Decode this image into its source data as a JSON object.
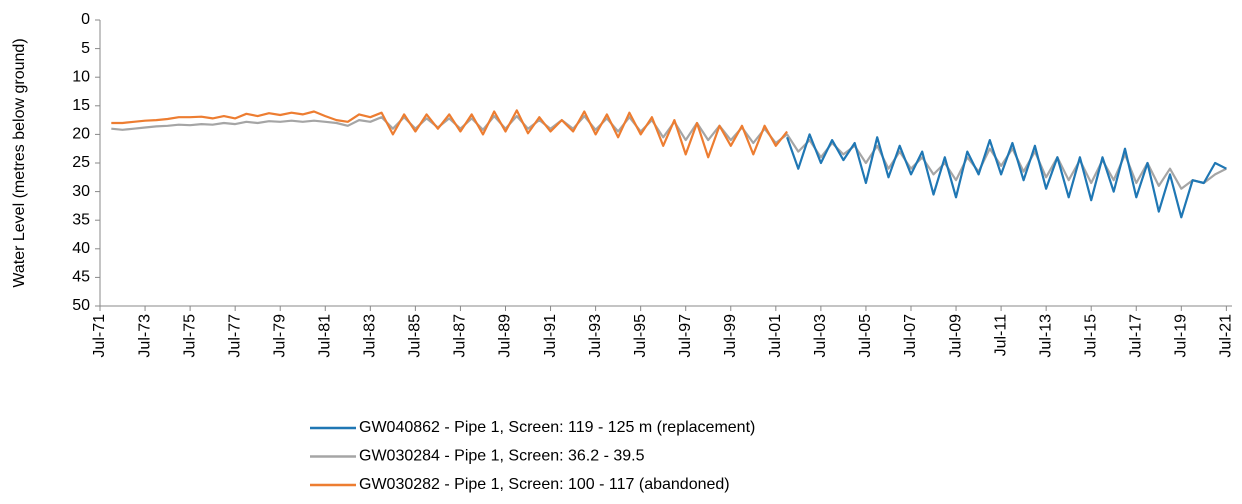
{
  "chart_data": {
    "type": "line",
    "ylabel": "Water Level (metres below ground)",
    "ylim": [
      0,
      50
    ],
    "yticks": [
      0,
      5,
      10,
      15,
      20,
      25,
      30,
      35,
      40,
      45,
      50
    ],
    "yinverted": true,
    "xlim": [
      "1971-07",
      "2021-10"
    ],
    "xticks": [
      {
        "value": "1971-07",
        "label": "Jul-71"
      },
      {
        "value": "1973-07",
        "label": "Jul-73"
      },
      {
        "value": "1975-07",
        "label": "Jul-75"
      },
      {
        "value": "1977-07",
        "label": "Jul-77"
      },
      {
        "value": "1979-07",
        "label": "Jul-79"
      },
      {
        "value": "1981-07",
        "label": "Jul-81"
      },
      {
        "value": "1983-07",
        "label": "Jul-83"
      },
      {
        "value": "1985-07",
        "label": "Jul-85"
      },
      {
        "value": "1987-07",
        "label": "Jul-87"
      },
      {
        "value": "1989-07",
        "label": "Jul-89"
      },
      {
        "value": "1991-07",
        "label": "Jul-91"
      },
      {
        "value": "1993-07",
        "label": "Jul-93"
      },
      {
        "value": "1995-07",
        "label": "Jul-95"
      },
      {
        "value": "1997-07",
        "label": "Jul-97"
      },
      {
        "value": "1999-07",
        "label": "Jul-99"
      },
      {
        "value": "2001-07",
        "label": "Jul-01"
      },
      {
        "value": "2003-07",
        "label": "Jul-03"
      },
      {
        "value": "2005-07",
        "label": "Jul-05"
      },
      {
        "value": "2007-07",
        "label": "Jul-07"
      },
      {
        "value": "2009-07",
        "label": "Jul-09"
      },
      {
        "value": "2011-07",
        "label": "Jul-11"
      },
      {
        "value": "2013-07",
        "label": "Jul-13"
      },
      {
        "value": "2015-07",
        "label": "Jul-15"
      },
      {
        "value": "2017-07",
        "label": "Jul-17"
      },
      {
        "value": "2019-07",
        "label": "Jul-19"
      },
      {
        "value": "2021-07",
        "label": "Jul-21"
      }
    ],
    "legend": "bottom",
    "series": [
      {
        "name": "GW040862 - Pipe 1, Screen: 119 - 125 m (replacement)",
        "color": "#1f77b4",
        "x": [
          "2002-01",
          "2002-07",
          "2003-01",
          "2003-07",
          "2004-01",
          "2004-07",
          "2005-01",
          "2005-07",
          "2006-01",
          "2006-07",
          "2007-01",
          "2007-07",
          "2008-01",
          "2008-07",
          "2009-01",
          "2009-07",
          "2010-01",
          "2010-07",
          "2011-01",
          "2011-07",
          "2012-01",
          "2012-07",
          "2013-01",
          "2013-07",
          "2014-01",
          "2014-07",
          "2015-01",
          "2015-07",
          "2016-01",
          "2016-07",
          "2017-01",
          "2017-07",
          "2018-01",
          "2018-07",
          "2019-01",
          "2019-07",
          "2020-01",
          "2020-07",
          "2021-01",
          "2021-07"
        ],
        "values": [
          20.5,
          26.0,
          20.0,
          25.0,
          21.0,
          24.5,
          21.5,
          28.5,
          20.5,
          27.5,
          22.0,
          27.0,
          23.0,
          30.5,
          24.0,
          31.0,
          23.0,
          27.0,
          21.0,
          27.0,
          21.5,
          28.0,
          22.0,
          29.5,
          24.0,
          31.0,
          24.0,
          31.5,
          24.0,
          30.0,
          22.5,
          31.0,
          25.0,
          33.5,
          27.0,
          34.5,
          28.0,
          28.5,
          25.0,
          26.0
        ]
      },
      {
        "name": "GW030284 - Pipe 1, Screen: 36.2 - 39.5",
        "color": "#a5a5a5",
        "x": [
          "1972-01",
          "1972-07",
          "1973-01",
          "1973-07",
          "1974-01",
          "1974-07",
          "1975-01",
          "1975-07",
          "1976-01",
          "1976-07",
          "1977-01",
          "1977-07",
          "1978-01",
          "1978-07",
          "1979-01",
          "1979-07",
          "1980-01",
          "1980-07",
          "1981-01",
          "1981-07",
          "1982-01",
          "1982-07",
          "1983-01",
          "1983-07",
          "1984-01",
          "1984-07",
          "1985-01",
          "1985-07",
          "1986-01",
          "1986-07",
          "1987-01",
          "1987-07",
          "1988-01",
          "1988-07",
          "1989-01",
          "1989-07",
          "1990-01",
          "1990-07",
          "1991-01",
          "1991-07",
          "1992-01",
          "1992-07",
          "1993-01",
          "1993-07",
          "1994-01",
          "1994-07",
          "1995-01",
          "1995-07",
          "1996-01",
          "1996-07",
          "1997-01",
          "1997-07",
          "1998-01",
          "1998-07",
          "1999-01",
          "1999-07",
          "2000-01",
          "2000-07",
          "2001-01",
          "2001-07",
          "2002-01",
          "2002-07",
          "2003-01",
          "2003-07",
          "2004-01",
          "2004-07",
          "2005-01",
          "2005-07",
          "2006-01",
          "2006-07",
          "2007-01",
          "2007-07",
          "2008-01",
          "2008-07",
          "2009-01",
          "2009-07",
          "2010-01",
          "2010-07",
          "2011-01",
          "2011-07",
          "2012-01",
          "2012-07",
          "2013-01",
          "2013-07",
          "2014-01",
          "2014-07",
          "2015-01",
          "2015-07",
          "2016-01",
          "2016-07",
          "2017-01",
          "2017-07",
          "2018-01",
          "2018-07",
          "2019-01",
          "2019-07",
          "2020-01",
          "2020-07",
          "2021-01",
          "2021-07"
        ],
        "values": [
          19.0,
          19.2,
          19.0,
          18.8,
          18.6,
          18.5,
          18.3,
          18.4,
          18.2,
          18.3,
          18.0,
          18.2,
          17.8,
          18.0,
          17.7,
          17.8,
          17.6,
          17.8,
          17.6,
          17.8,
          18.0,
          18.5,
          17.5,
          17.8,
          17.0,
          19.0,
          17.0,
          19.0,
          17.2,
          18.8,
          17.2,
          19.0,
          17.2,
          19.2,
          16.8,
          19.0,
          16.8,
          19.0,
          17.5,
          19.0,
          17.5,
          19.0,
          16.8,
          19.2,
          17.2,
          19.5,
          17.0,
          19.5,
          17.5,
          20.5,
          17.8,
          21.0,
          18.0,
          21.0,
          18.5,
          21.0,
          18.8,
          21.5,
          19.0,
          21.5,
          20.0,
          23.0,
          21.0,
          24.0,
          21.5,
          23.5,
          22.0,
          25.0,
          22.0,
          26.0,
          23.0,
          26.0,
          24.0,
          27.0,
          25.0,
          28.0,
          24.0,
          26.5,
          22.5,
          25.5,
          22.5,
          26.5,
          23.0,
          27.5,
          24.0,
          28.0,
          24.5,
          28.5,
          24.5,
          28.0,
          23.5,
          28.5,
          25.0,
          29.0,
          26.0,
          29.5,
          28.0,
          28.5,
          27.0,
          26.0
        ]
      },
      {
        "name": "GW030282 - Pipe 1, Screen: 100 - 117 (abandoned)",
        "color": "#ed7d31",
        "x": [
          "1972-01",
          "1972-07",
          "1973-01",
          "1973-07",
          "1974-01",
          "1974-07",
          "1975-01",
          "1975-07",
          "1976-01",
          "1976-07",
          "1977-01",
          "1977-07",
          "1978-01",
          "1978-07",
          "1979-01",
          "1979-07",
          "1980-01",
          "1980-07",
          "1981-01",
          "1981-07",
          "1982-01",
          "1982-07",
          "1983-01",
          "1983-07",
          "1984-01",
          "1984-07",
          "1985-01",
          "1985-07",
          "1986-01",
          "1986-07",
          "1987-01",
          "1987-07",
          "1988-01",
          "1988-07",
          "1989-01",
          "1989-07",
          "1990-01",
          "1990-07",
          "1991-01",
          "1991-07",
          "1992-01",
          "1992-07",
          "1993-01",
          "1993-07",
          "1994-01",
          "1994-07",
          "1995-01",
          "1995-07",
          "1996-01",
          "1996-07",
          "1997-01",
          "1997-07",
          "1998-01",
          "1998-07",
          "1999-01",
          "1999-07",
          "2000-01",
          "2000-07",
          "2001-01",
          "2001-07",
          "2002-01"
        ],
        "values": [
          18.0,
          18.0,
          17.8,
          17.6,
          17.5,
          17.3,
          17.0,
          17.0,
          16.9,
          17.2,
          16.8,
          17.2,
          16.4,
          16.8,
          16.3,
          16.6,
          16.2,
          16.5,
          16.0,
          16.8,
          17.5,
          17.8,
          16.5,
          17.0,
          16.2,
          20.0,
          16.5,
          19.5,
          16.5,
          19.0,
          16.5,
          19.5,
          16.5,
          20.0,
          16.0,
          19.5,
          15.8,
          19.8,
          17.0,
          19.5,
          17.5,
          19.5,
          16.0,
          20.0,
          16.5,
          20.5,
          16.2,
          20.0,
          17.0,
          22.0,
          17.5,
          23.5,
          18.0,
          24.0,
          18.5,
          22.0,
          18.5,
          23.5,
          18.5,
          22.0,
          19.5
        ]
      }
    ]
  }
}
